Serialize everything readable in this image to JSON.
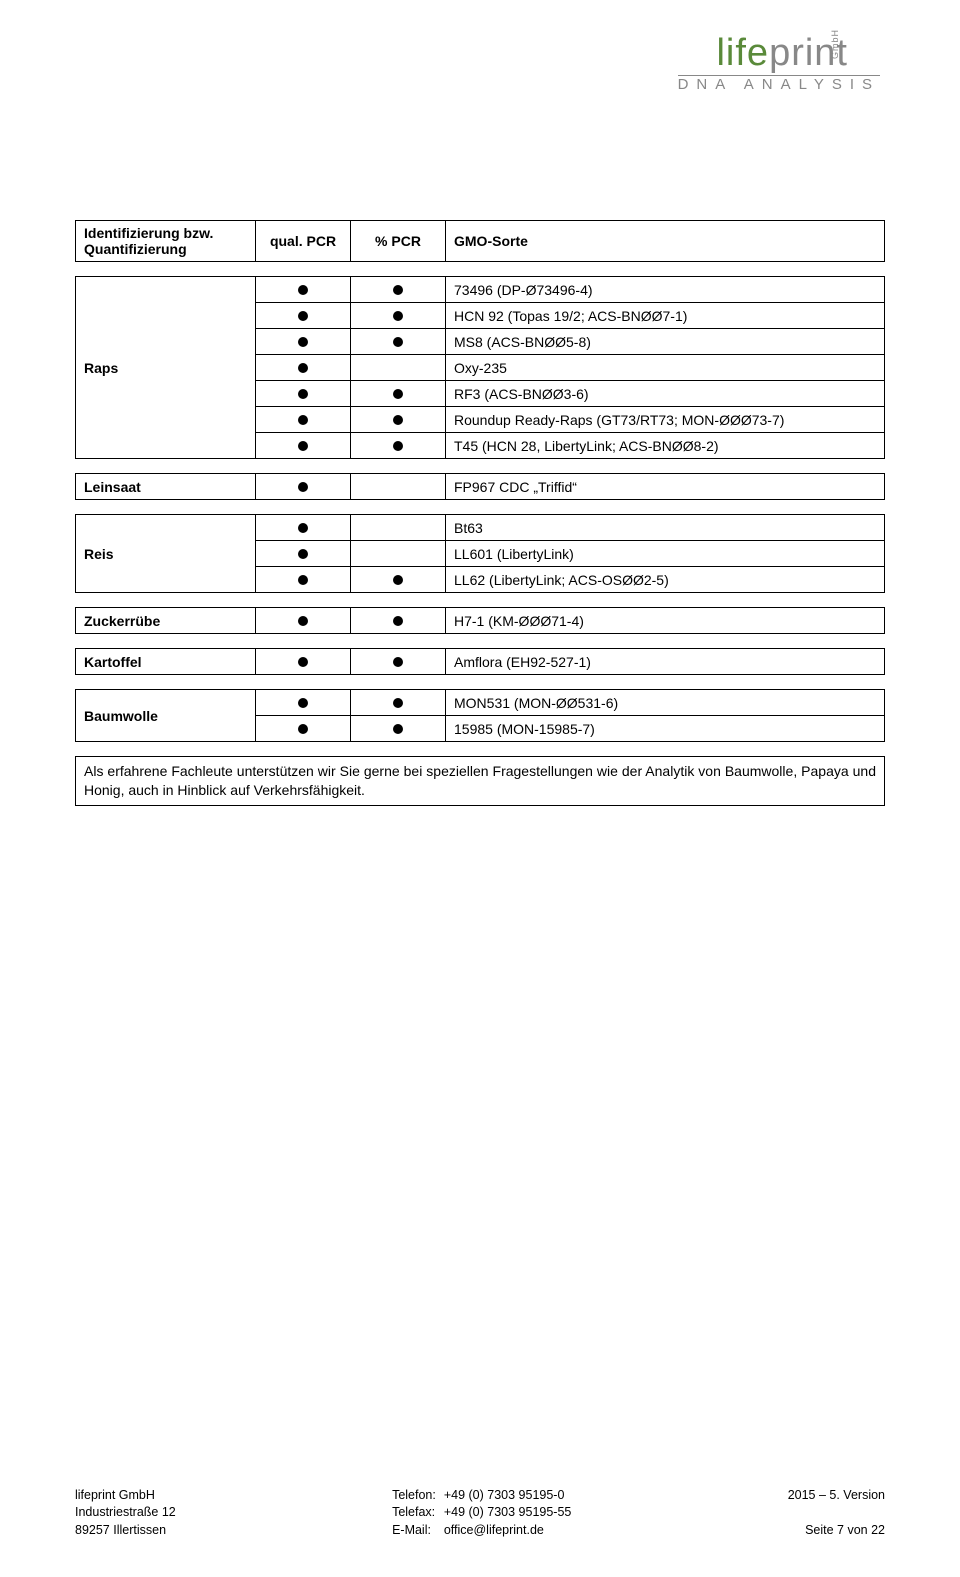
{
  "logo": {
    "part1": "life",
    "part2": "print",
    "gmbh": "GmbH",
    "sub": "DNA ANALYSIS"
  },
  "header": {
    "col1": "Identifizierung bzw. Quantifizierung",
    "col2": "qual. PCR",
    "col3": "% PCR",
    "col4": "GMO-Sorte"
  },
  "raps": {
    "label": "Raps",
    "rows": [
      {
        "q": true,
        "p": true,
        "desc": "73496 (DP-Ø73496-4)"
      },
      {
        "q": true,
        "p": true,
        "desc": "HCN 92 (Topas 19/2; ACS-BNØØ7-1)"
      },
      {
        "q": true,
        "p": true,
        "desc": "MS8 (ACS-BNØØ5-8)"
      },
      {
        "q": true,
        "p": false,
        "desc": "Oxy-235"
      },
      {
        "q": true,
        "p": true,
        "desc": "RF3 (ACS-BNØØ3-6)"
      },
      {
        "q": true,
        "p": true,
        "desc": "Roundup Ready-Raps (GT73/RT73; MON-ØØØ73-7)"
      },
      {
        "q": true,
        "p": true,
        "desc": "T45 (HCN 28, LibertyLink; ACS-BNØØ8-2)"
      }
    ]
  },
  "leinsaat": {
    "label": "Leinsaat",
    "q": true,
    "p": false,
    "desc": "FP967 CDC „Triffid“"
  },
  "reis": {
    "label": "Reis",
    "rows": [
      {
        "q": true,
        "p": false,
        "desc": "Bt63"
      },
      {
        "q": true,
        "p": false,
        "desc": "LL601 (LibertyLink)"
      },
      {
        "q": true,
        "p": true,
        "desc": "LL62 (LibertyLink; ACS-OSØØ2-5)"
      }
    ]
  },
  "zuckerruebe": {
    "label": "Zuckerrübe",
    "q": true,
    "p": true,
    "desc": "H7-1 (KM-ØØØ71-4)"
  },
  "kartoffel": {
    "label": "Kartoffel",
    "q": true,
    "p": true,
    "desc": "Amflora (EH92-527-1)"
  },
  "baumwolle": {
    "label": "Baumwolle",
    "rows": [
      {
        "q": true,
        "p": true,
        "desc": "MON531 (MON-ØØ531-6)"
      },
      {
        "q": true,
        "p": true,
        "desc": "15985 (MON-15985-7)"
      }
    ]
  },
  "note": "Als erfahrene Fachleute unterstützen wir Sie gerne bei speziellen Fragestellungen wie der Analytik von Baumwolle, Papaya und Honig, auch in Hinblick auf Verkehrsfähigkeit.",
  "footer": {
    "left1": "lifeprint GmbH",
    "left2": "Industriestraße 12",
    "left3": "89257 Illertissen",
    "mid_tel_label": "Telefon:",
    "mid_fax_label": "Telefax:",
    "mid_mail_label": "E-Mail:",
    "mid_tel": "+49 (0) 7303 95195-0",
    "mid_fax": "+49 (0) 7303 95195-55",
    "mid_mail": "office@lifeprint.de",
    "right1": "2015 – 5. Version",
    "right2": "Seite 7 von 22"
  }
}
